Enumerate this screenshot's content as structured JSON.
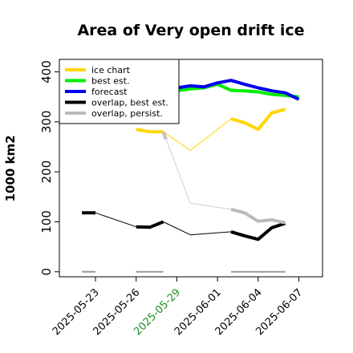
{
  "chart_data": {
    "type": "line",
    "title": "Area of Very open drift ice",
    "xlabel": "",
    "ylabel": "1000 km2",
    "ylim": [
      -10,
      425
    ],
    "y_ticks": [
      0,
      100,
      200,
      300,
      400
    ],
    "x_ticks": [
      {
        "label": "2025-05-23",
        "day": 0,
        "color": "#000000"
      },
      {
        "label": "2025-05-26",
        "day": 3,
        "color": "#000000"
      },
      {
        "label": "2025-05-29",
        "day": 6,
        "color": "#228B22"
      },
      {
        "label": "2025-06-01",
        "day": 9,
        "color": "#000000"
      },
      {
        "label": "2025-06-04",
        "day": 12,
        "color": "#000000"
      },
      {
        "label": "2025-06-07",
        "day": 15,
        "color": "#000000"
      }
    ],
    "legend_position": "top-left",
    "grid": false,
    "series": [
      {
        "name": "ice chart",
        "color": "#FFD700",
        "thin_color": "#FFD700",
        "segments": [
          {
            "style": "thick",
            "points": [
              [
                3,
                285
              ],
              [
                4,
                280
              ],
              [
                5,
                280
              ]
            ]
          },
          {
            "style": "thin",
            "points": [
              [
                5,
                280
              ],
              [
                7,
                243
              ],
              [
                10,
                306
              ]
            ]
          },
          {
            "style": "thick",
            "points": [
              [
                10,
                306
              ],
              [
                11,
                298
              ],
              [
                12,
                285
              ],
              [
                13,
                318
              ],
              [
                14,
                325
              ]
            ]
          }
        ]
      },
      {
        "name": "best est.",
        "color": "#00EE00",
        "thin_color": "#00EE00",
        "segments": [
          {
            "style": "thick",
            "points": [
              [
                5,
                360
              ],
              [
                6,
                362
              ],
              [
                7,
                366
              ],
              [
                8,
                368
              ],
              [
                9,
                375
              ],
              [
                10,
                363
              ],
              [
                11,
                362
              ],
              [
                12,
                360
              ],
              [
                13,
                355
              ],
              [
                14,
                353
              ],
              [
                15,
                350
              ]
            ]
          }
        ]
      },
      {
        "name": "forecast",
        "color": "#0000EE",
        "thin_color": "#0000EE",
        "segments": [
          {
            "style": "thick",
            "points": [
              [
                5,
                365
              ],
              [
                6,
                368
              ],
              [
                7,
                372
              ],
              [
                8,
                370
              ],
              [
                9,
                378
              ],
              [
                10,
                383
              ],
              [
                11,
                375
              ],
              [
                12,
                368
              ],
              [
                13,
                362
              ],
              [
                14,
                358
              ],
              [
                15,
                345
              ]
            ]
          }
        ]
      },
      {
        "name": "overlap, best est.",
        "color": "#000000",
        "thin_color": "#000000",
        "segments": [
          {
            "style": "thick",
            "points": [
              [
                -1,
                118
              ],
              [
                0,
                118
              ]
            ]
          },
          {
            "style": "thin",
            "points": [
              [
                0,
                118
              ],
              [
                3,
                90
              ]
            ]
          },
          {
            "style": "thick",
            "points": [
              [
                3,
                90
              ],
              [
                4,
                89
              ],
              [
                5,
                100
              ]
            ]
          },
          {
            "style": "thin",
            "points": [
              [
                5,
                100
              ],
              [
                7,
                74
              ],
              [
                10,
                80
              ]
            ]
          },
          {
            "style": "thick",
            "points": [
              [
                10,
                80
              ],
              [
                11,
                72
              ],
              [
                12,
                65
              ],
              [
                13,
                88
              ],
              [
                14,
                97
              ]
            ]
          }
        ]
      },
      {
        "name": "overlap, persist.",
        "color": "#BBBBBB",
        "thin_color": "#D0D0D0",
        "segments": [
          {
            "style": "thick",
            "points": [
              [
                5,
                280
              ],
              [
                5.2,
                265
              ]
            ]
          },
          {
            "style": "thin",
            "points": [
              [
                5,
                280
              ],
              [
                7,
                137
              ],
              [
                10,
                125
              ]
            ]
          },
          {
            "style": "thick",
            "points": [
              [
                10,
                125
              ],
              [
                11,
                118
              ],
              [
                12,
                101
              ],
              [
                13,
                104
              ],
              [
                14,
                98
              ]
            ]
          }
        ]
      },
      {
        "name": "zero-markers",
        "color": "#999999",
        "thin_color": "#999999",
        "legend": false,
        "segments": [
          {
            "style": "thinthick",
            "points": [
              [
                -1,
                0
              ],
              [
                0,
                0
              ]
            ]
          },
          {
            "style": "thinthick",
            "points": [
              [
                3,
                0
              ],
              [
                5,
                0
              ]
            ]
          },
          {
            "style": "thinthick",
            "points": [
              [
                10,
                0
              ],
              [
                14,
                0
              ]
            ]
          }
        ]
      }
    ]
  }
}
